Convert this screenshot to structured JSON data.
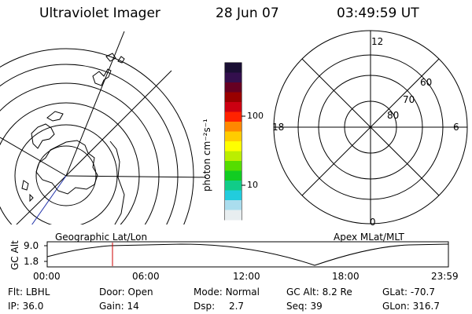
{
  "header": {
    "instrument": "Ultraviolet Imager",
    "date": "28 Jun 07",
    "time": "03:49:59 UT"
  },
  "colorbar": {
    "unit_label": "photon cm⁻²s⁻¹",
    "ticks": [
      "100",
      "10"
    ],
    "colors": [
      "#1a0f33",
      "#330f4d",
      "#660022",
      "#990000",
      "#cc0011",
      "#ff2200",
      "#ff8800",
      "#ffcc00",
      "#ffff00",
      "#bbee00",
      "#55dd00",
      "#11cc22",
      "#11cc88",
      "#22ccdd",
      "#aaddee",
      "#e8eef0"
    ]
  },
  "left_map": {
    "label": "Geographic Lat/Lon"
  },
  "right_map": {
    "label": "Apex MLat/MLT",
    "mlt_labels": [
      "12",
      "18",
      "6",
      "0"
    ],
    "lat_labels": [
      "60",
      "70",
      "80"
    ]
  },
  "altitude_plot": {
    "ylabel": "GC Alt",
    "yticks": [
      "9.0",
      "1.8"
    ],
    "xticks": [
      "00:00",
      "06:00",
      "12:00",
      "18:00",
      "23:59"
    ],
    "cursor_color": "#cc0000"
  },
  "status": {
    "row1": [
      {
        "key": "Flt:",
        "value": "LBHL"
      },
      {
        "key": "Door:",
        "value": "Open"
      },
      {
        "key": "Mode:",
        "value": "Normal"
      },
      {
        "key": "GC Alt:",
        "value": "8.2 Re"
      },
      {
        "key": "GLat:",
        "value": "-70.7"
      }
    ],
    "row2": [
      {
        "key": "IP:",
        "value": "36.0"
      },
      {
        "key": "Gain:",
        "value": "14"
      },
      {
        "key": "Dsp:",
        "value": "2.7"
      },
      {
        "key": "Seq:",
        "value": "39"
      },
      {
        "key": "GLon:",
        "value": "316.7"
      }
    ]
  }
}
